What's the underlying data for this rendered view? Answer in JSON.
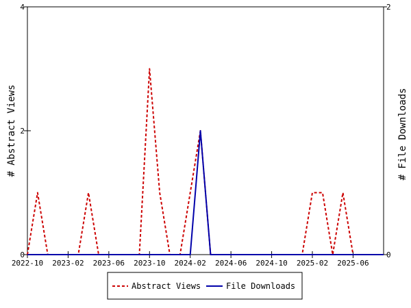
{
  "chart_data": {
    "type": "line",
    "title": "",
    "xlabel": "",
    "ylabel_left": "# Abstract Views",
    "ylabel_right": "# File Downloads",
    "ylim_left": [
      0,
      4
    ],
    "ylim_right": [
      0,
      2
    ],
    "yticks_left": [
      "0",
      "2",
      "4"
    ],
    "yticks_right": [
      "0",
      "2"
    ],
    "x_tick_labels": [
      "2022-10",
      "2023-02",
      "2023-06",
      "2023-10",
      "2024-02",
      "2024-06",
      "2024-10",
      "2025-02",
      "2025-06"
    ],
    "x_months": [
      "2022-10",
      "2022-11",
      "2022-12",
      "2023-01",
      "2023-02",
      "2023-03",
      "2023-04",
      "2023-05",
      "2023-06",
      "2023-07",
      "2023-08",
      "2023-09",
      "2023-10",
      "2023-11",
      "2023-12",
      "2024-01",
      "2024-02",
      "2024-03",
      "2024-04",
      "2024-05",
      "2024-06",
      "2024-07",
      "2024-08",
      "2024-09",
      "2024-10",
      "2024-11",
      "2024-12",
      "2025-01",
      "2025-02",
      "2025-03",
      "2025-04",
      "2025-05",
      "2025-06",
      "2025-07",
      "2025-08",
      "2025-09"
    ],
    "grid": false,
    "legend_position": "bottom",
    "series": [
      {
        "name": "Abstract Views",
        "axis": "left",
        "color": "#cc0000",
        "dash": "dashed",
        "values": [
          0,
          1,
          0,
          0,
          0,
          0,
          1,
          0,
          0,
          0,
          0,
          0,
          3,
          1,
          0,
          0,
          1,
          2,
          0,
          0,
          0,
          0,
          0,
          0,
          0,
          0,
          0,
          0,
          1,
          1,
          0,
          1,
          0,
          0,
          0,
          0
        ]
      },
      {
        "name": "File Downloads",
        "axis": "right",
        "color": "#0000aa",
        "dash": "solid",
        "values": [
          0,
          0,
          0,
          0,
          0,
          0,
          0,
          0,
          0,
          0,
          0,
          0,
          0,
          0,
          0,
          0,
          0,
          1,
          0,
          0,
          0,
          0,
          0,
          0,
          0,
          0,
          0,
          0,
          0,
          0,
          0,
          0,
          0,
          0,
          0,
          0
        ]
      }
    ]
  }
}
